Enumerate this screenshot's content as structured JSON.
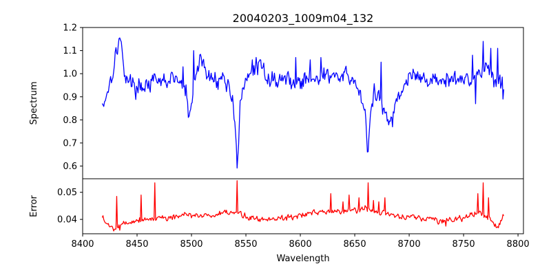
{
  "chart_data": {
    "title": "20040203_1009m04_132",
    "xlabel": "Wavelength",
    "xlim": [
      8400,
      8805
    ],
    "xticks": [
      8400,
      8450,
      8500,
      8550,
      8600,
      8650,
      8700,
      8750,
      8800
    ],
    "x_range": [
      8418,
      8787
    ],
    "grid": false,
    "panels": [
      {
        "type": "line",
        "ylabel": "Spectrum",
        "ylim": [
          0.545,
          1.2
        ],
        "yticks": [
          0.6,
          0.7,
          0.8,
          0.9,
          1.0,
          1.1,
          1.2
        ],
        "ytick_labels": [
          "0.6",
          "0.7",
          "0.8",
          "0.9",
          "1.0",
          "1.1",
          "1.2"
        ],
        "series": [
          {
            "color": "#0000ff",
            "baseline": 0.965,
            "noise": 0.035,
            "seed": 17,
            "anchors": [
              [
                8419,
                0.87
              ],
              [
                8423,
                0.93
              ],
              [
                8427,
                1.0
              ],
              [
                8431,
                1.1
              ],
              [
                8434,
                1.16
              ],
              [
                8438,
                1.02
              ],
              [
                8442,
                0.97
              ],
              [
                8450,
                0.94
              ],
              [
                8460,
                0.96
              ],
              [
                8470,
                0.96
              ],
              [
                8485,
                0.98
              ],
              [
                8495,
                0.93
              ],
              [
                8498,
                0.78
              ],
              [
                8502,
                0.94
              ],
              [
                8508,
                1.08
              ],
              [
                8515,
                0.98
              ],
              [
                8530,
                0.98
              ],
              [
                8538,
                0.9
              ],
              [
                8541,
                0.72
              ],
              [
                8542,
                0.575
              ],
              [
                8543,
                0.7
              ],
              [
                8545,
                0.88
              ],
              [
                8552,
                0.98
              ],
              [
                8560,
                1.04
              ],
              [
                8575,
                0.97
              ],
              [
                8585,
                0.98
              ],
              [
                8600,
                0.96
              ],
              [
                8615,
                0.99
              ],
              [
                8630,
                0.99
              ],
              [
                8645,
                0.98
              ],
              [
                8655,
                0.93
              ],
              [
                8660,
                0.8
              ],
              [
                8662,
                0.625
              ],
              [
                8664,
                0.8
              ],
              [
                8668,
                0.92
              ],
              [
                8675,
                0.86
              ],
              [
                8681,
                0.8
              ],
              [
                8686,
                0.85
              ],
              [
                8695,
                0.96
              ],
              [
                8705,
                0.99
              ],
              [
                8720,
                0.97
              ],
              [
                8740,
                0.97
              ],
              [
                8755,
                0.98
              ],
              [
                8765,
                1.0
              ],
              [
                8770,
                1.04
              ],
              [
                8778,
                0.98
              ],
              [
                8787,
                0.95
              ]
            ],
            "spikes": [
              [
                8492,
                1.03
              ],
              [
                8502,
                1.1
              ],
              [
                8556,
                1.06
              ],
              [
                8596,
                1.07
              ],
              [
                8609,
                1.06
              ],
              [
                8619,
                1.07
              ],
              [
                8674,
                1.05
              ],
              [
                8685,
                0.77
              ],
              [
                8690,
                0.92
              ],
              [
                8758,
                1.08
              ],
              [
                8761,
                0.87
              ],
              [
                8768,
                1.14
              ],
              [
                8775,
                1.11
              ],
              [
                8781,
                1.11
              ],
              [
                8786,
                0.89
              ]
            ]
          }
        ]
      },
      {
        "type": "line",
        "ylabel": "Error",
        "ylim": [
          0.0347,
          0.055
        ],
        "yticks": [
          0.04,
          0.05
        ],
        "ytick_labels": [
          "0.04",
          "0.05"
        ],
        "series": [
          {
            "color": "#ff0000",
            "baseline": 0.0405,
            "noise": 0.0011,
            "seed": 5,
            "anchors": [
              [
                8419,
                0.041
              ],
              [
                8422,
                0.038
              ],
              [
                8428,
                0.037
              ],
              [
                8435,
                0.038
              ],
              [
                8445,
                0.0395
              ],
              [
                8470,
                0.0405
              ],
              [
                8500,
                0.0415
              ],
              [
                8520,
                0.0415
              ],
              [
                8540,
                0.0425
              ],
              [
                8560,
                0.04
              ],
              [
                8580,
                0.0405
              ],
              [
                8600,
                0.0415
              ],
              [
                8620,
                0.0425
              ],
              [
                8640,
                0.043
              ],
              [
                8660,
                0.044
              ],
              [
                8675,
                0.0425
              ],
              [
                8690,
                0.041
              ],
              [
                8710,
                0.0405
              ],
              [
                8730,
                0.0395
              ],
              [
                8750,
                0.0405
              ],
              [
                8765,
                0.0425
              ],
              [
                8775,
                0.0395
              ],
              [
                8782,
                0.0375
              ],
              [
                8787,
                0.0415
              ]
            ],
            "spikes": [
              [
                8431,
                0.0485
              ],
              [
                8434,
                0.036
              ],
              [
                8454,
                0.049
              ],
              [
                8466,
                0.0535
              ],
              [
                8542,
                0.0543
              ],
              [
                8628,
                0.0495
              ],
              [
                8639,
                0.0465
              ],
              [
                8645,
                0.049
              ],
              [
                8654,
                0.048
              ],
              [
                8662,
                0.0535
              ],
              [
                8667,
                0.047
              ],
              [
                8672,
                0.0465
              ],
              [
                8678,
                0.048
              ],
              [
                8734,
                0.0375
              ],
              [
                8763,
                0.0495
              ],
              [
                8768,
                0.0535
              ],
              [
                8773,
                0.048
              ]
            ]
          }
        ]
      }
    ]
  }
}
